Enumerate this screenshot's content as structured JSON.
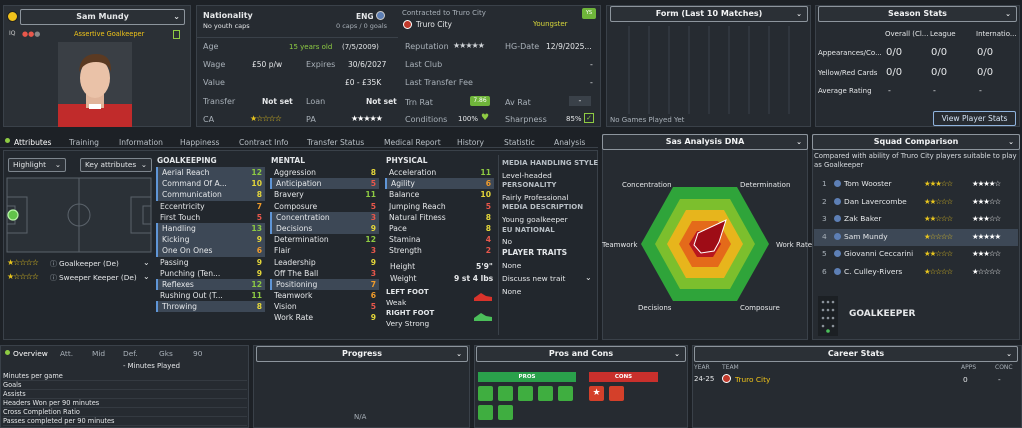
{
  "player": {
    "name": "Sam Mundy",
    "role": "Assertive Goalkeeper",
    "iq": "IQ"
  },
  "nationality": {
    "label": "Nationality",
    "value": "ENG",
    "caps": "No youth caps",
    "caps_right": "0 caps / 0 goals"
  },
  "contract": {
    "label": "Contracted to Truro City",
    "club": "Truro City",
    "status": "Youngster",
    "badge": "YS"
  },
  "info": {
    "age_label": "Age",
    "age": "15 years old",
    "dob": "(7/5/2009)",
    "wage_label": "Wage",
    "wage": "£50 p/w",
    "expires_label": "Expires",
    "expires": "30/6/2027",
    "value_label": "Value",
    "value": "£0 - £35K",
    "transfer_label": "Transfer",
    "transfer": "Not set",
    "loan_label": "Loan",
    "loan": "Not set",
    "ca_label": "CA",
    "ca_stars": "★☆☆☆☆",
    "pa_label": "PA",
    "pa_stars": "★★★★★"
  },
  "club_info": {
    "reputation_label": "Reputation",
    "reputation_stars": "★★★★★",
    "hg_label": "HG-Date",
    "hg": "12/9/2025...",
    "last_club_label": "Last Club",
    "last_club": "-",
    "last_fee_label": "Last Transfer Fee",
    "last_fee": "-",
    "trn_label": "Trn Rat",
    "trn": "7.86",
    "av_label": "Av Rat",
    "av": "-",
    "cond_label": "Conditions",
    "cond": "100%",
    "sharp_label": "Sharpness",
    "sharp": "85%"
  },
  "form": {
    "title": "Form (Last 10 Matches)",
    "empty": "No Games Played Yet"
  },
  "season": {
    "title": "Season Stats",
    "cols": [
      "Overall (Cl...",
      "League",
      "Internatio..."
    ],
    "rows": [
      {
        "label": "Appearances/Co...",
        "vals": [
          "0/0",
          "0/0",
          "0/0"
        ]
      },
      {
        "label": "Yellow/Red Cards",
        "vals": [
          "0/0",
          "0/0",
          "0/0"
        ]
      },
      {
        "label": "Average Rating",
        "vals": [
          "-",
          "-",
          "-"
        ]
      }
    ],
    "button": "View Player Stats"
  },
  "tabs": [
    "Attributes",
    "Training",
    "Information",
    "Happiness",
    "Contract Info",
    "Transfer Status",
    "Medical Report",
    "History",
    "Statistic",
    "Analysis"
  ],
  "highlight": {
    "label": "Highlight",
    "key": "Key attributes"
  },
  "positions": [
    {
      "stars": "★☆☆☆☆",
      "label": "Goalkeeper (De)"
    },
    {
      "stars": "★☆☆☆☆",
      "label": "Sweeper Keeper (De)"
    }
  ],
  "gk": {
    "title": "GOALKEEPING",
    "rows": [
      {
        "n": "Aerial Reach",
        "v": "12",
        "c": "g",
        "h": 1
      },
      {
        "n": "Command Of A...",
        "v": "10",
        "c": "y",
        "h": 1
      },
      {
        "n": "Communication",
        "v": "8",
        "c": "y",
        "h": 1
      },
      {
        "n": "Eccentricity",
        "v": "7",
        "c": "o",
        "h": 0
      },
      {
        "n": "First Touch",
        "v": "5",
        "c": "r",
        "h": 0
      },
      {
        "n": "Handling",
        "v": "13",
        "c": "g",
        "h": 1
      },
      {
        "n": "Kicking",
        "v": "9",
        "c": "y",
        "h": 1
      },
      {
        "n": "One On Ones",
        "v": "6",
        "c": "o",
        "h": 1
      },
      {
        "n": "Passing",
        "v": "9",
        "c": "y",
        "h": 0
      },
      {
        "n": "Punching (Ten...",
        "v": "9",
        "c": "y",
        "h": 0
      },
      {
        "n": "Reflexes",
        "v": "12",
        "c": "g",
        "h": 1
      },
      {
        "n": "Rushing Out (T...",
        "v": "11",
        "c": "g",
        "h": 0
      },
      {
        "n": "Throwing",
        "v": "8",
        "c": "y",
        "h": 1
      }
    ]
  },
  "mental": {
    "title": "MENTAL",
    "rows": [
      {
        "n": "Aggression",
        "v": "8",
        "c": "y",
        "h": 0
      },
      {
        "n": "Anticipation",
        "v": "5",
        "c": "r",
        "h": 1
      },
      {
        "n": "Bravery",
        "v": "11",
        "c": "g",
        "h": 0
      },
      {
        "n": "Composure",
        "v": "5",
        "c": "r",
        "h": 0
      },
      {
        "n": "Concentration",
        "v": "3",
        "c": "r",
        "h": 1
      },
      {
        "n": "Decisions",
        "v": "9",
        "c": "y",
        "h": 1
      },
      {
        "n": "Determination",
        "v": "12",
        "c": "g",
        "h": 0
      },
      {
        "n": "Flair",
        "v": "3",
        "c": "r",
        "h": 0
      },
      {
        "n": "Leadership",
        "v": "9",
        "c": "y",
        "h": 0
      },
      {
        "n": "Off The Ball",
        "v": "3",
        "c": "r",
        "h": 0
      },
      {
        "n": "Positioning",
        "v": "7",
        "c": "o",
        "h": 1
      },
      {
        "n": "Teamwork",
        "v": "6",
        "c": "o",
        "h": 0
      },
      {
        "n": "Vision",
        "v": "5",
        "c": "r",
        "h": 0
      },
      {
        "n": "Work Rate",
        "v": "9",
        "c": "y",
        "h": 0
      }
    ]
  },
  "physical": {
    "title": "PHYSICAL",
    "rows": [
      {
        "n": "Acceleration",
        "v": "11",
        "c": "g",
        "h": 0
      },
      {
        "n": "Agility",
        "v": "6",
        "c": "o",
        "h": 1
      },
      {
        "n": "Balance",
        "v": "10",
        "c": "y",
        "h": 0
      },
      {
        "n": "Jumping Reach",
        "v": "5",
        "c": "r",
        "h": 0
      },
      {
        "n": "Natural Fitness",
        "v": "8",
        "c": "y",
        "h": 0
      },
      {
        "n": "Pace",
        "v": "8",
        "c": "y",
        "h": 0
      },
      {
        "n": "Stamina",
        "v": "4",
        "c": "r",
        "h": 0
      },
      {
        "n": "Strength",
        "v": "2",
        "c": "r",
        "h": 0
      }
    ],
    "height_label": "Height",
    "height": "5'9\"",
    "weight_label": "Weight",
    "weight": "9 st 4 lbs",
    "left_label": "LEFT FOOT",
    "left": "Weak",
    "right_label": "RIGHT FOOT",
    "right": "Very Strong"
  },
  "media": {
    "title": "MEDIA HANDLING STYLE",
    "style": "Level-headed",
    "pers_title": "PERSONALITY",
    "pers": "Fairly Professional",
    "desc_title": "MEDIA DESCRIPTION",
    "desc": "Young goalkeeper",
    "eu_title": "EU NATIONAL",
    "eu": "No",
    "traits_title": "PLAYER TRAITS",
    "traits": "None",
    "discuss": "Discuss new trait",
    "traits2": "None"
  },
  "dna": {
    "title": "Sas Analysis DNA",
    "labels": [
      "Concentration",
      "Determination",
      "Work Rate",
      "Composure",
      "Decisions",
      "Teamwork"
    ]
  },
  "squad": {
    "title": "Squad Comparison",
    "desc": "Compared with ability of Truro City players suitable to play as Goalkeeper",
    "rows": [
      {
        "i": "1",
        "name": "Tom Wooster",
        "a": "★★★☆☆",
        "b": "★★★★☆"
      },
      {
        "i": "2",
        "name": "Dan Lavercombe",
        "a": "★★☆☆☆",
        "b": "★★★☆☆"
      },
      {
        "i": "3",
        "name": "Zak Baker",
        "a": "★★☆☆☆",
        "b": "★★★☆☆"
      },
      {
        "i": "4",
        "name": "Sam Mundy",
        "a": "★☆☆☆☆",
        "b": "★★★★★"
      },
      {
        "i": "5",
        "name": "Giovanni Ceccarini",
        "a": "★★☆☆☆",
        "b": "★★★☆☆"
      },
      {
        "i": "6",
        "name": "C. Culley-Rivers",
        "a": "★☆☆☆☆",
        "b": "★☆☆☆☆"
      }
    ],
    "pos": "GOALKEEPER"
  },
  "overview": {
    "tabs": [
      "Overview",
      "Att.",
      "Mid",
      "Def.",
      "Gks",
      "90"
    ],
    "minutes": "- Minutes Played",
    "rows": [
      "Minutes per game",
      "Goals",
      "Assists",
      "Headers Won per 90 minutes",
      "Cross Completion Ratio",
      "Passes completed per 90 minutes"
    ]
  },
  "progress": {
    "title": "Progress",
    "na": "N/A"
  },
  "pros": {
    "title": "Pros and Cons",
    "pros": "PROS",
    "cons": "CONS"
  },
  "career": {
    "title": "Career Stats",
    "year_h": "YEAR",
    "team_h": "TEAM",
    "apps_h": "APPS",
    "conc_h": "CONC",
    "year": "24-25",
    "team": "Truro City",
    "apps": "0",
    "conc": "-"
  }
}
